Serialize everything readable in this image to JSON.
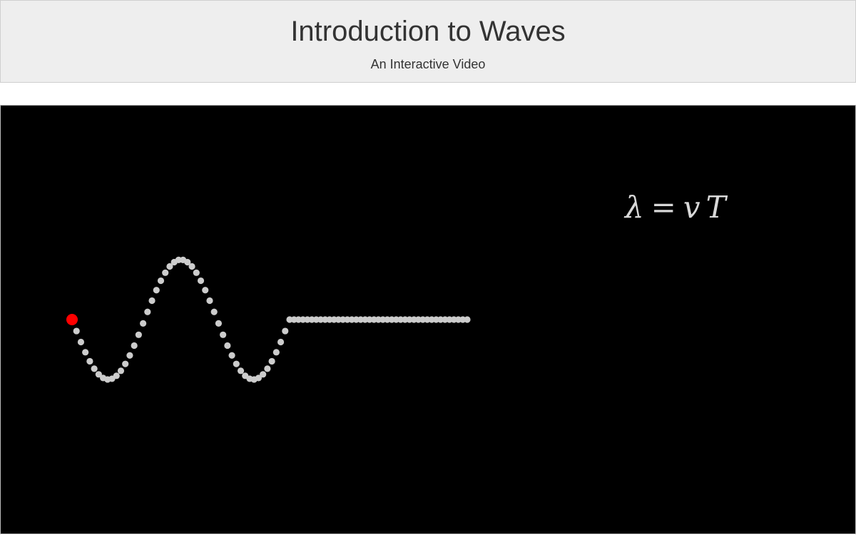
{
  "header": {
    "title": "Introduction to Waves",
    "subtitle": "An Interactive Video"
  },
  "stage": {
    "equation": {
      "lambda": "λ",
      "equals": "=",
      "v": "v",
      "T": "T"
    },
    "wave": {
      "amplitude_px_note": "",
      "colors": {
        "bead": "#cccccc",
        "source": "#ff0000",
        "background": "#000000",
        "equation": "#d8d8d8"
      },
      "bead_count": 90,
      "wave_beads": 50,
      "source_marker": "source-dot"
    }
  }
}
